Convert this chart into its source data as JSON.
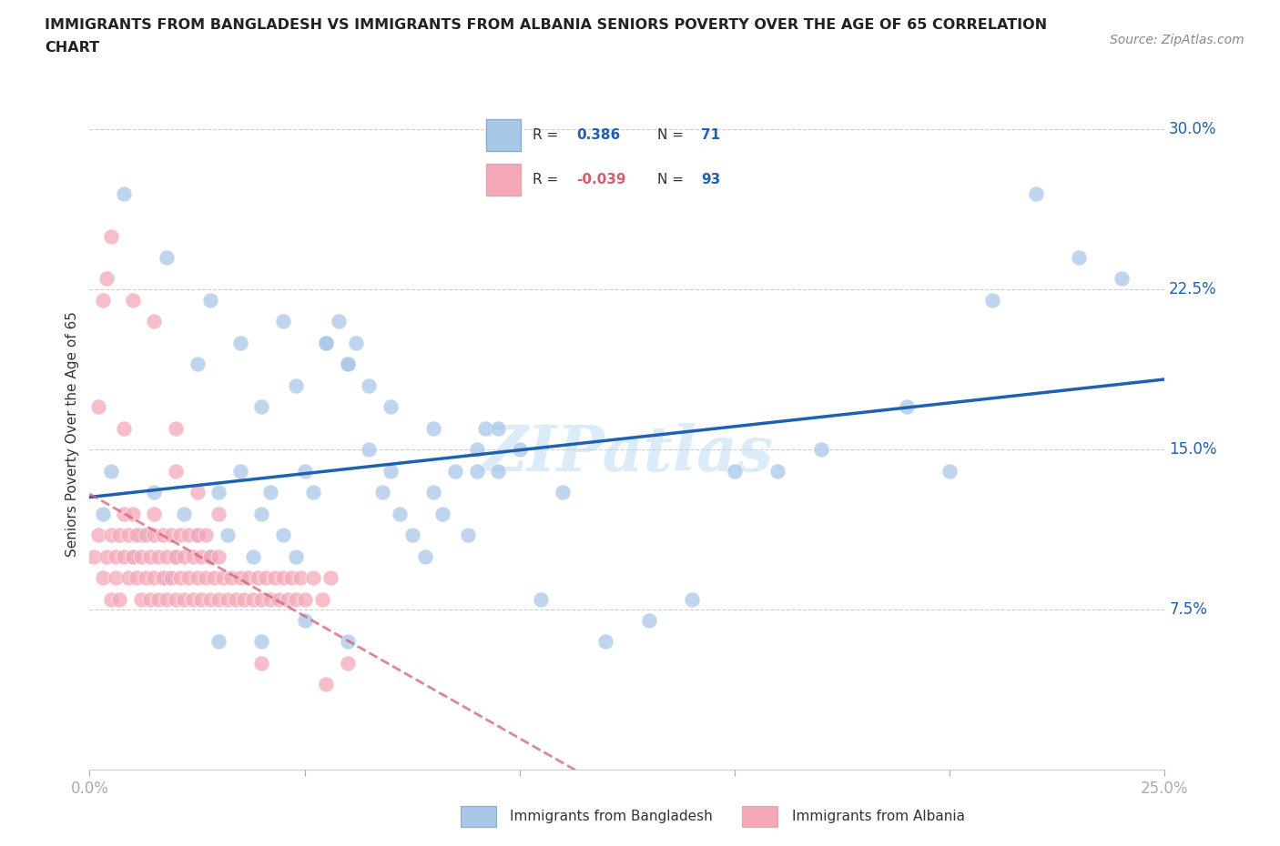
{
  "title_line1": "IMMIGRANTS FROM BANGLADESH VS IMMIGRANTS FROM ALBANIA SENIORS POVERTY OVER THE AGE OF 65 CORRELATION",
  "title_line2": "CHART",
  "source": "Source: ZipAtlas.com",
  "ylabel": "Seniors Poverty Over the Age of 65",
  "watermark": "ZIPatlas",
  "xlim": [
    0.0,
    0.25
  ],
  "ylim": [
    0.0,
    0.315
  ],
  "ytick_vals": [
    0.075,
    0.15,
    0.225,
    0.3
  ],
  "ytick_labels": [
    "7.5%",
    "15.0%",
    "22.5%",
    "30.0%"
  ],
  "xtick_vals": [
    0.0,
    0.05,
    0.1,
    0.15,
    0.2,
    0.25
  ],
  "xtick_labels": [
    "0.0%",
    "",
    "",
    "",
    "",
    "25.0%"
  ],
  "color_bd": "#a8c8e8",
  "color_al": "#f4a8b8",
  "trendline_bd_color": "#2060b0",
  "trendline_al_color": "#d06070",
  "R_bd": 0.386,
  "N_bd": 71,
  "R_al": -0.039,
  "N_al": 93,
  "bd_x": [
    0.003,
    0.005,
    0.01,
    0.012,
    0.015,
    0.018,
    0.02,
    0.022,
    0.025,
    0.028,
    0.03,
    0.032,
    0.035,
    0.038,
    0.04,
    0.042,
    0.045,
    0.048,
    0.05,
    0.052,
    0.055,
    0.058,
    0.06,
    0.062,
    0.065,
    0.068,
    0.07,
    0.072,
    0.075,
    0.078,
    0.08,
    0.082,
    0.085,
    0.088,
    0.09,
    0.092,
    0.095,
    0.008,
    0.018,
    0.028,
    0.04,
    0.048,
    0.055,
    0.06,
    0.065,
    0.07,
    0.03,
    0.04,
    0.05,
    0.06,
    0.09,
    0.1,
    0.11,
    0.12,
    0.13,
    0.14,
    0.15,
    0.16,
    0.17,
    0.2,
    0.21,
    0.025,
    0.035,
    0.045,
    0.08,
    0.095,
    0.105,
    0.19,
    0.22,
    0.23,
    0.24
  ],
  "bd_y": [
    0.12,
    0.14,
    0.1,
    0.11,
    0.13,
    0.09,
    0.1,
    0.12,
    0.11,
    0.1,
    0.13,
    0.11,
    0.14,
    0.1,
    0.12,
    0.13,
    0.11,
    0.1,
    0.14,
    0.13,
    0.2,
    0.21,
    0.19,
    0.2,
    0.15,
    0.13,
    0.14,
    0.12,
    0.11,
    0.1,
    0.13,
    0.12,
    0.14,
    0.11,
    0.15,
    0.16,
    0.14,
    0.27,
    0.24,
    0.22,
    0.17,
    0.18,
    0.2,
    0.19,
    0.18,
    0.17,
    0.06,
    0.06,
    0.07,
    0.06,
    0.14,
    0.15,
    0.13,
    0.06,
    0.07,
    0.08,
    0.14,
    0.14,
    0.15,
    0.14,
    0.22,
    0.19,
    0.2,
    0.21,
    0.16,
    0.16,
    0.08,
    0.17,
    0.27,
    0.24,
    0.23
  ],
  "al_x": [
    0.001,
    0.002,
    0.003,
    0.003,
    0.004,
    0.004,
    0.005,
    0.005,
    0.006,
    0.006,
    0.007,
    0.007,
    0.008,
    0.008,
    0.009,
    0.009,
    0.01,
    0.01,
    0.011,
    0.011,
    0.012,
    0.012,
    0.013,
    0.013,
    0.014,
    0.014,
    0.015,
    0.015,
    0.016,
    0.016,
    0.017,
    0.017,
    0.018,
    0.018,
    0.019,
    0.019,
    0.02,
    0.02,
    0.021,
    0.021,
    0.022,
    0.022,
    0.023,
    0.023,
    0.024,
    0.024,
    0.025,
    0.025,
    0.026,
    0.026,
    0.027,
    0.027,
    0.028,
    0.028,
    0.029,
    0.03,
    0.03,
    0.031,
    0.032,
    0.033,
    0.034,
    0.035,
    0.036,
    0.037,
    0.038,
    0.039,
    0.04,
    0.041,
    0.042,
    0.043,
    0.044,
    0.045,
    0.046,
    0.047,
    0.048,
    0.049,
    0.05,
    0.052,
    0.054,
    0.055,
    0.056,
    0.06,
    0.002,
    0.008,
    0.015,
    0.02,
    0.025,
    0.03,
    0.04,
    0.005,
    0.01,
    0.015,
    0.02
  ],
  "al_y": [
    0.1,
    0.11,
    0.09,
    0.22,
    0.1,
    0.23,
    0.08,
    0.11,
    0.1,
    0.09,
    0.11,
    0.08,
    0.1,
    0.12,
    0.09,
    0.11,
    0.1,
    0.12,
    0.09,
    0.11,
    0.1,
    0.08,
    0.11,
    0.09,
    0.1,
    0.08,
    0.11,
    0.09,
    0.1,
    0.08,
    0.09,
    0.11,
    0.1,
    0.08,
    0.09,
    0.11,
    0.1,
    0.08,
    0.09,
    0.11,
    0.1,
    0.08,
    0.09,
    0.11,
    0.1,
    0.08,
    0.09,
    0.11,
    0.1,
    0.08,
    0.09,
    0.11,
    0.1,
    0.08,
    0.09,
    0.1,
    0.08,
    0.09,
    0.08,
    0.09,
    0.08,
    0.09,
    0.08,
    0.09,
    0.08,
    0.09,
    0.08,
    0.09,
    0.08,
    0.09,
    0.08,
    0.09,
    0.08,
    0.09,
    0.08,
    0.09,
    0.08,
    0.09,
    0.08,
    0.04,
    0.09,
    0.05,
    0.17,
    0.16,
    0.12,
    0.14,
    0.13,
    0.12,
    0.05,
    0.25,
    0.22,
    0.21,
    0.16
  ]
}
